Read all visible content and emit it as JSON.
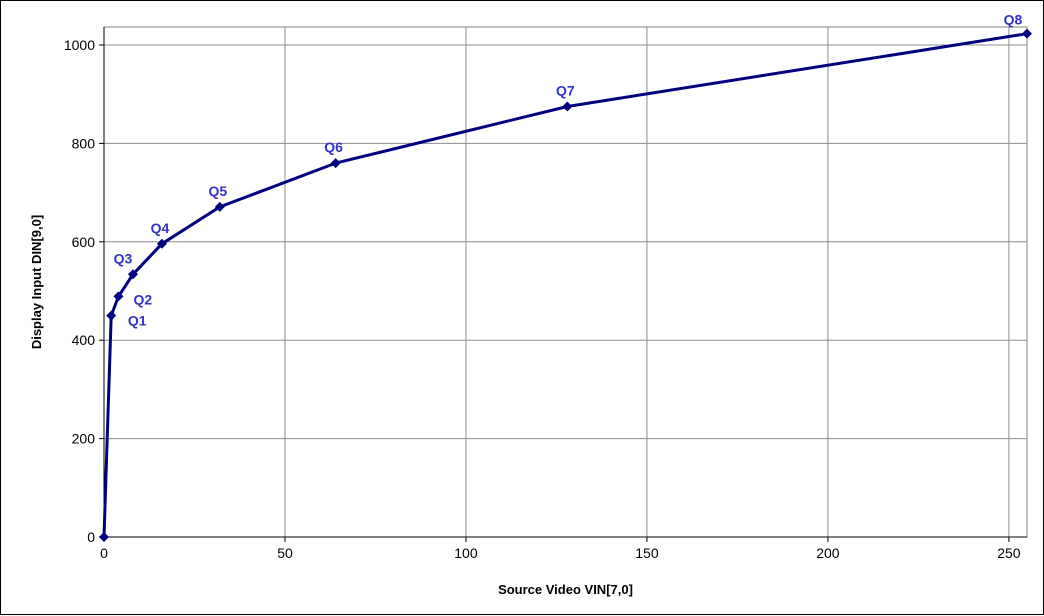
{
  "chart_data": {
    "type": "line",
    "title": "",
    "xlabel": "Source Video VIN[7,0]",
    "ylabel": "Display Input DIN[9,0]",
    "xlim": [
      0,
      255
    ],
    "ylim": [
      0,
      1000
    ],
    "x_ticks": [
      0,
      50,
      100,
      150,
      200,
      250
    ],
    "y_ticks": [
      0,
      200,
      400,
      600,
      800,
      1000
    ],
    "grid": true,
    "legend": "none",
    "series": [
      {
        "name": "",
        "color": "#000080",
        "marker": "diamond",
        "points": [
          {
            "x": 0,
            "y": 0,
            "label": ""
          },
          {
            "x": 2,
            "y": 450,
            "label": "Q1"
          },
          {
            "x": 4,
            "y": 489,
            "label": "Q2"
          },
          {
            "x": 8,
            "y": 534,
            "label": "Q3"
          },
          {
            "x": 16,
            "y": 596,
            "label": "Q4"
          },
          {
            "x": 32,
            "y": 671,
            "label": "Q5"
          },
          {
            "x": 64,
            "y": 760,
            "label": "Q6"
          },
          {
            "x": 128,
            "y": 875,
            "label": "Q7"
          },
          {
            "x": 255,
            "y": 1023,
            "label": "Q8"
          }
        ]
      }
    ],
    "label_color": "#3333cc"
  }
}
